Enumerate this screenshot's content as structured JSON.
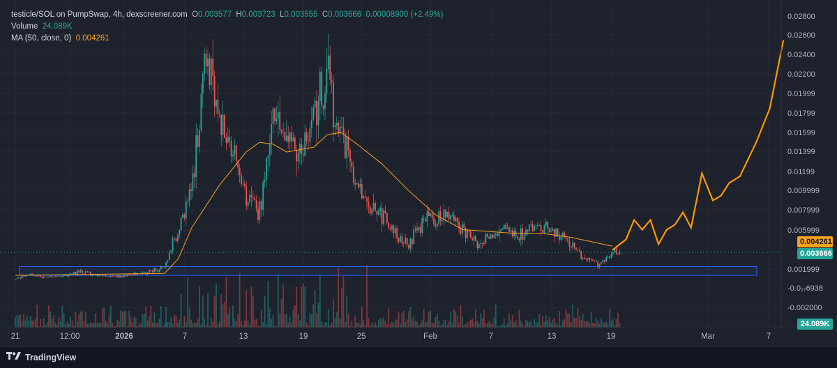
{
  "legend": {
    "symbol": "testicle/SOL on PumpSwap, 4h, dexscreener.com",
    "open_label": "O",
    "open": "0.003577",
    "high_label": "H",
    "high": "0.003723",
    "low_label": "L",
    "low": "0.003555",
    "close_label": "C",
    "close": "0.003666",
    "change": "0.00008900 (+2.49%)",
    "volume_label": "Volume",
    "volume": "24.089K",
    "ma_label": "MA (50, close, 0)",
    "ma_value": "0.004261"
  },
  "price_tags": {
    "ma": "0.004261",
    "last": "0.003666",
    "volume": "24.089K"
  },
  "footer": {
    "brand": "TradingView"
  },
  "colors": {
    "up": "#26a69a",
    "down": "#ef5350",
    "ma": "#f7a21b",
    "projection": "#ff9800",
    "zone": "#2962ff",
    "background": "#1e222d"
  },
  "icons": {
    "logo": "tradingview-logo-icon"
  },
  "chart_data": {
    "type": "candlestick",
    "title": "testicle/SOL on PumpSwap, 4h, dexscreener.com",
    "y_axis_ticks": [
      "0.02800",
      "0.02600",
      "0.02400",
      "0.02200",
      "0.01999",
      "0.01799",
      "0.01599",
      "0.01399",
      "0.01199",
      "0.009999",
      "0.007999",
      "0.005999",
      "0.001999",
      "-0.0₁₇6938",
      "-0.002000"
    ],
    "x_axis_ticks": [
      "21",
      "12:00",
      "2026",
      "7",
      "13",
      "19",
      "25",
      "Feb",
      "7",
      "13",
      "19",
      "Mar",
      "7"
    ],
    "ylim": [
      -0.0008,
      0.0285
    ],
    "price_path": [
      {
        "t": 0,
        "p": 0.0009
      },
      {
        "t": 1,
        "p": 0.0014
      },
      {
        "t": 2,
        "p": 0.0011
      },
      {
        "t": 3,
        "p": 0.0011
      },
      {
        "t": 4,
        "p": 0.0014
      },
      {
        "t": 5,
        "p": 0.0017
      },
      {
        "t": 6,
        "p": 0.0013
      },
      {
        "t": 7,
        "p": 0.0012
      },
      {
        "t": 8,
        "p": 0.0012
      },
      {
        "t": 9,
        "p": 0.0015
      },
      {
        "t": 10,
        "p": 0.0017
      },
      {
        "t": 11,
        "p": 0.0021
      },
      {
        "t": 12,
        "p": 0.006
      },
      {
        "t": 13,
        "p": 0.01
      },
      {
        "t": 14,
        "p": 0.024
      },
      {
        "t": 15,
        "p": 0.018
      },
      {
        "t": 16,
        "p": 0.014
      },
      {
        "t": 17,
        "p": 0.0095
      },
      {
        "t": 18,
        "p": 0.008
      },
      {
        "t": 19,
        "p": 0.017
      },
      {
        "t": 20,
        "p": 0.0155
      },
      {
        "t": 21,
        "p": 0.014
      },
      {
        "t": 22,
        "p": 0.018
      },
      {
        "t": 23,
        "p": 0.0215
      },
      {
        "t": 24,
        "p": 0.016
      },
      {
        "t": 25,
        "p": 0.011
      },
      {
        "t": 26,
        "p": 0.008
      },
      {
        "t": 27,
        "p": 0.0075
      },
      {
        "t": 28,
        "p": 0.0055
      },
      {
        "t": 29,
        "p": 0.0045
      },
      {
        "t": 30,
        "p": 0.007
      },
      {
        "t": 31,
        "p": 0.007
      },
      {
        "t": 32,
        "p": 0.0075
      },
      {
        "t": 33,
        "p": 0.006
      },
      {
        "t": 34,
        "p": 0.0045
      },
      {
        "t": 35,
        "p": 0.0055
      },
      {
        "t": 36,
        "p": 0.006
      },
      {
        "t": 37,
        "p": 0.005
      },
      {
        "t": 38,
        "p": 0.0065
      },
      {
        "t": 39,
        "p": 0.006
      },
      {
        "t": 40,
        "p": 0.0055
      },
      {
        "t": 41,
        "p": 0.0045
      },
      {
        "t": 42,
        "p": 0.0028
      },
      {
        "t": 43,
        "p": 0.0025
      },
      {
        "t": 44,
        "p": 0.0037
      }
    ],
    "ma_path": [
      {
        "t": 0,
        "p": 0.0013
      },
      {
        "t": 11,
        "p": 0.0015
      },
      {
        "t": 12,
        "p": 0.003
      },
      {
        "t": 13,
        "p": 0.0062
      },
      {
        "t": 15,
        "p": 0.0105
      },
      {
        "t": 17,
        "p": 0.014
      },
      {
        "t": 18,
        "p": 0.015
      },
      {
        "t": 19,
        "p": 0.0148
      },
      {
        "t": 20,
        "p": 0.014
      },
      {
        "t": 22,
        "p": 0.0145
      },
      {
        "t": 23,
        "p": 0.0158
      },
      {
        "t": 24,
        "p": 0.016
      },
      {
        "t": 25,
        "p": 0.015
      },
      {
        "t": 27,
        "p": 0.0128
      },
      {
        "t": 29,
        "p": 0.01
      },
      {
        "t": 31,
        "p": 0.0075
      },
      {
        "t": 33,
        "p": 0.006
      },
      {
        "t": 35,
        "p": 0.0058
      },
      {
        "t": 37,
        "p": 0.0056
      },
      {
        "t": 39,
        "p": 0.0056
      },
      {
        "t": 41,
        "p": 0.0052
      },
      {
        "t": 44,
        "p": 0.0043
      }
    ],
    "projection_path": [
      {
        "t": 44,
        "p": 0.0039
      },
      {
        "t": 45,
        "p": 0.005
      },
      {
        "t": 45.6,
        "p": 0.007
      },
      {
        "t": 46.2,
        "p": 0.006
      },
      {
        "t": 46.8,
        "p": 0.007
      },
      {
        "t": 47.4,
        "p": 0.0045
      },
      {
        "t": 48,
        "p": 0.006
      },
      {
        "t": 48.6,
        "p": 0.0065
      },
      {
        "t": 49.2,
        "p": 0.0078
      },
      {
        "t": 49.8,
        "p": 0.0062
      },
      {
        "t": 50.6,
        "p": 0.0118
      },
      {
        "t": 51.4,
        "p": 0.009
      },
      {
        "t": 52,
        "p": 0.0095
      },
      {
        "t": 52.6,
        "p": 0.0108
      },
      {
        "t": 53.4,
        "p": 0.0115
      },
      {
        "t": 54.6,
        "p": 0.015
      },
      {
        "t": 55.6,
        "p": 0.0185
      },
      {
        "t": 56.6,
        "p": 0.0255
      }
    ],
    "support_zone": {
      "low": 0.0013,
      "high": 0.0022
    },
    "current_price_line": 0.003666
  }
}
